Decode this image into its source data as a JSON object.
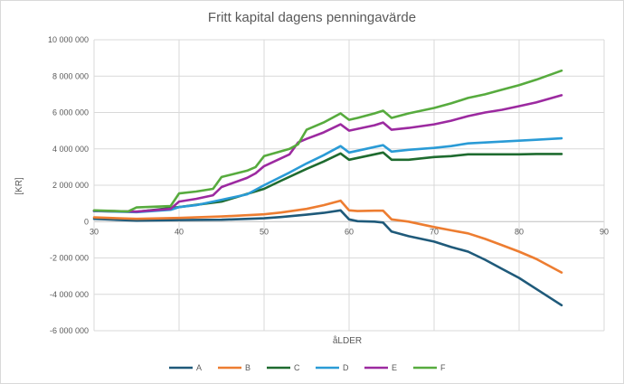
{
  "chart_data": {
    "type": "line",
    "title": "Fritt kapital dagens penningavärde",
    "xlabel": "åLDER",
    "ylabel": "[KR]",
    "xlim": [
      30,
      90
    ],
    "ylim": [
      -6000000,
      10000000
    ],
    "x_ticks": [
      "30",
      "40",
      "50",
      "60",
      "70",
      "80",
      "90"
    ],
    "y_ticks": [
      "10 000 000",
      "8 000 000",
      "6 000 000",
      "4 000 000",
      "2 000 000",
      "0",
      "-2 000 000",
      "-4 000 000",
      "-6 000 000"
    ],
    "grid": true,
    "legend_position": "bottom",
    "series": [
      {
        "name": "A",
        "color": "#1f5a7a",
        "x": [
          30,
          35,
          40,
          45,
          50,
          52,
          55,
          57,
          59,
          60,
          61,
          63,
          64,
          65,
          67,
          70,
          72,
          74,
          76,
          78,
          80,
          82,
          85
        ],
        "y": [
          150000,
          50000,
          80000,
          100000,
          180000,
          250000,
          380000,
          480000,
          620000,
          120000,
          20000,
          0,
          -50000,
          -550000,
          -800000,
          -1100000,
          -1400000,
          -1650000,
          -2100000,
          -2600000,
          -3100000,
          -3700000,
          -4600000
        ]
      },
      {
        "name": "B",
        "color": "#ed7d31",
        "x": [
          30,
          35,
          40,
          45,
          50,
          52,
          55,
          57,
          59,
          60,
          61,
          63,
          64,
          65,
          67,
          70,
          72,
          74,
          76,
          78,
          80,
          82,
          85
        ],
        "y": [
          230000,
          150000,
          200000,
          280000,
          400000,
          500000,
          700000,
          900000,
          1150000,
          620000,
          580000,
          600000,
          600000,
          120000,
          0,
          -300000,
          -480000,
          -650000,
          -950000,
          -1300000,
          -1650000,
          -2050000,
          -2800000
        ]
      },
      {
        "name": "C",
        "color": "#1e6b2f",
        "x": [
          30,
          35,
          40,
          45,
          50,
          52,
          55,
          57,
          59,
          60,
          61,
          63,
          64,
          65,
          67,
          70,
          72,
          74,
          76,
          78,
          80,
          82,
          85
        ],
        "y": [
          580000,
          540000,
          800000,
          1100000,
          1800000,
          2250000,
          2900000,
          3300000,
          3750000,
          3400000,
          3500000,
          3700000,
          3800000,
          3400000,
          3400000,
          3550000,
          3600000,
          3700000,
          3700000,
          3700000,
          3700000,
          3720000,
          3720000
        ]
      },
      {
        "name": "D",
        "color": "#2a9bd6",
        "x": [
          30,
          35,
          39,
          40,
          42,
          45,
          48,
          50,
          53,
          55,
          57,
          59,
          60,
          61,
          63,
          64,
          65,
          67,
          70,
          72,
          74,
          76,
          78,
          80,
          82,
          85
        ],
        "y": [
          580000,
          520000,
          650000,
          800000,
          900000,
          1200000,
          1500000,
          2000000,
          2700000,
          3200000,
          3650000,
          4150000,
          3800000,
          3900000,
          4100000,
          4200000,
          3850000,
          3950000,
          4050000,
          4150000,
          4300000,
          4350000,
          4400000,
          4450000,
          4500000,
          4580000
        ]
      },
      {
        "name": "E",
        "color": "#9c2aa0",
        "x": [
          30,
          35,
          39,
          40,
          42,
          44,
          45,
          48,
          49,
          50,
          53,
          54,
          55,
          57,
          59,
          60,
          61,
          63,
          64,
          65,
          67,
          70,
          72,
          74,
          76,
          78,
          80,
          82,
          85
        ],
        "y": [
          600000,
          550000,
          700000,
          1100000,
          1250000,
          1450000,
          1900000,
          2400000,
          2650000,
          3050000,
          3700000,
          4350000,
          4550000,
          4900000,
          5350000,
          5000000,
          5100000,
          5300000,
          5450000,
          5050000,
          5150000,
          5350000,
          5550000,
          5800000,
          6000000,
          6150000,
          6350000,
          6550000,
          6950000
        ]
      },
      {
        "name": "F",
        "color": "#57ab3e",
        "x": [
          30,
          34,
          35,
          39,
          40,
          42,
          44,
          45,
          48,
          49,
          50,
          53,
          54,
          55,
          57,
          59,
          60,
          61,
          63,
          64,
          65,
          67,
          70,
          72,
          74,
          76,
          78,
          80,
          82,
          85
        ],
        "y": [
          620000,
          560000,
          780000,
          850000,
          1550000,
          1650000,
          1800000,
          2450000,
          2800000,
          3000000,
          3600000,
          4000000,
          4250000,
          5050000,
          5450000,
          5950000,
          5600000,
          5700000,
          5950000,
          6100000,
          5700000,
          5950000,
          6250000,
          6500000,
          6800000,
          7000000,
          7250000,
          7500000,
          7800000,
          8300000
        ]
      }
    ]
  }
}
